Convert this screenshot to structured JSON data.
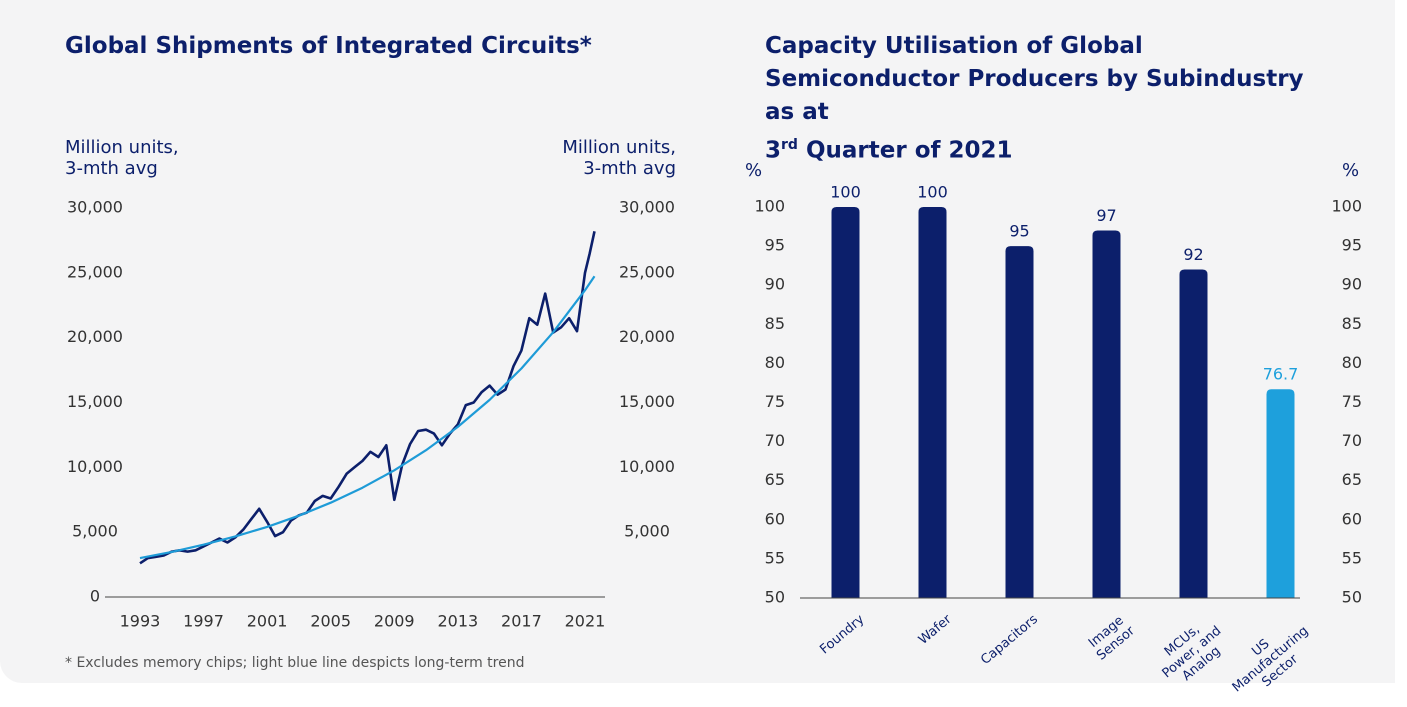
{
  "chart_data": [
    {
      "type": "line",
      "title": "Global Shipments of Integrated Circuits*",
      "y_label": "Million units,\n3-mth avg",
      "y2_label": "Million units,\n3-mth avg",
      "note": "* Excludes memory chips; light blue line despicts long-term trend",
      "x": [
        1993,
        1993.5,
        1994,
        1994.5,
        1995,
        1995.5,
        1996,
        1996.5,
        1997,
        1997.5,
        1998,
        1998.5,
        1999,
        1999.5,
        2000,
        2000.5,
        2001,
        2001.5,
        2002,
        2002.5,
        2003,
        2003.5,
        2004,
        2004.5,
        2005,
        2005.5,
        2006,
        2006.5,
        2007,
        2007.5,
        2008,
        2008.5,
        2009,
        2009.5,
        2010,
        2010.5,
        2011,
        2011.5,
        2012,
        2012.5,
        2013,
        2013.5,
        2014,
        2014.5,
        2015,
        2015.5,
        2016,
        2016.5,
        2017,
        2017.5,
        2018,
        2018.5,
        2019,
        2019.5,
        2020,
        2020.5,
        2021,
        2021.3,
        2021.6
      ],
      "series": [
        {
          "color": "#0c1f6b",
          "values": [
            2600,
            3000,
            3100,
            3200,
            3500,
            3600,
            3500,
            3600,
            3900,
            4200,
            4500,
            4200,
            4600,
            5200,
            6000,
            6800,
            5800,
            4700,
            5000,
            5900,
            6300,
            6500,
            7400,
            7800,
            7600,
            8500,
            9500,
            10000,
            10500,
            11200,
            10800,
            11700,
            7500,
            10200,
            11800,
            12800,
            12900,
            12600,
            11700,
            12600,
            13300,
            14800,
            15000,
            15800,
            16300,
            15600,
            16000,
            17800,
            19000,
            21500,
            21000,
            23400,
            20400,
            20800,
            21500,
            20500,
            25000,
            26500,
            28200
          ]
        },
        {
          "color": "#1e9bd7",
          "x": [
            1993,
            1995,
            1997,
            1999,
            2001,
            2003,
            2005,
            2007,
            2009,
            2011,
            2013,
            2015,
            2017,
            2019,
            2021,
            2021.6
          ],
          "values": [
            3000,
            3480,
            4030,
            4670,
            5410,
            6270,
            7270,
            8430,
            9770,
            11320,
            13120,
            15200,
            17620,
            20420,
            23660,
            24730
          ]
        }
      ],
      "xlim": [
        1990.8,
        2022.26
      ],
      "xticks": [
        1993,
        1997,
        2001,
        2005,
        2009,
        2013,
        2017,
        2021
      ],
      "ylim": [
        0,
        30000
      ],
      "yticks": [
        0,
        {
          "value": 5000,
          "label": "5,000"
        },
        {
          "value": 10000,
          "label": "10,000"
        },
        {
          "value": 15000,
          "label": "15,000"
        },
        {
          "value": 20000,
          "label": "20,000"
        },
        {
          "value": 25000,
          "label": "25,000"
        },
        {
          "value": 30000,
          "label": "30,000"
        }
      ],
      "y2lim": [
        0,
        30000
      ],
      "y2ticks": [
        {
          "value": 5000,
          "label": "5,000"
        },
        {
          "value": 10000,
          "label": "10,000"
        },
        {
          "value": 15000,
          "label": "15,000"
        },
        {
          "value": 20000,
          "label": "20,000"
        },
        {
          "value": 25000,
          "label": "25,000"
        },
        {
          "value": 30000,
          "label": "30,000"
        }
      ]
    },
    {
      "type": "bar",
      "title": "Capacity Utilisation of Global Semiconductor Producers by Subindustry as at",
      "title_ordinal": "3",
      "title_suffix": "rd",
      "title_end": "Quarter of 2021",
      "y_label": "%",
      "y2_label": "%",
      "categories": [
        "Foundry",
        "Wafer",
        "Capacitors",
        "Image\nSensor",
        "MCUs,\nPower, and\nAnalog",
        "US\nManufacturing\nSector"
      ],
      "values": [
        100,
        100,
        95,
        97,
        92,
        76.7
      ],
      "colors": [
        "#0c1f6b",
        "#0c1f6b",
        "#0c1f6b",
        "#0c1f6b",
        "#0c1f6b",
        "#1ea0dc"
      ],
      "ylim": [
        50,
        100
      ],
      "yticks": [
        50,
        55,
        60,
        65,
        70,
        75,
        80,
        85,
        90,
        95,
        100
      ],
      "y2lim": [
        50,
        100
      ],
      "y2ticks": [
        50,
        55,
        60,
        65,
        70,
        75,
        80,
        85,
        90,
        95,
        100
      ]
    }
  ]
}
